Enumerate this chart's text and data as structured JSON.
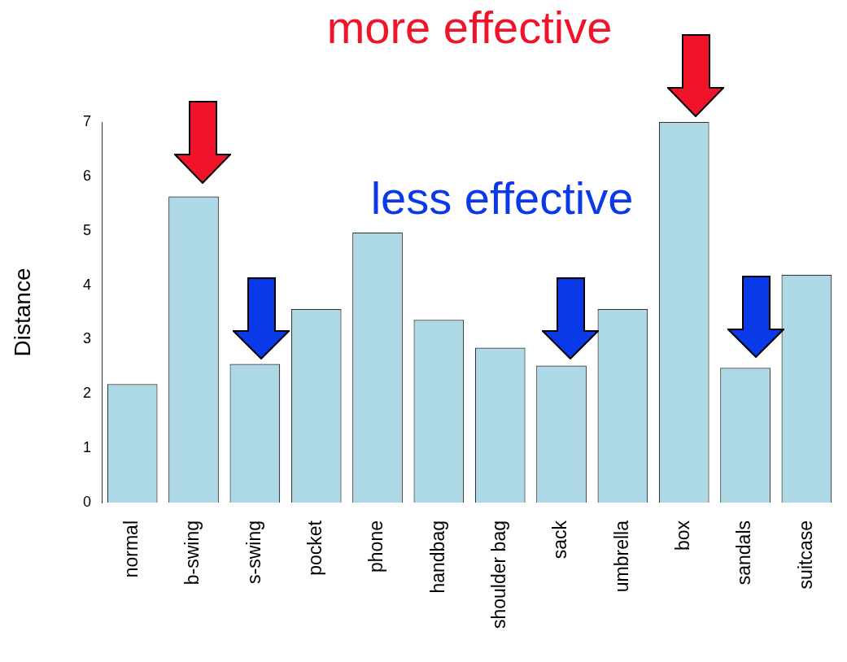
{
  "chart_data": {
    "type": "bar",
    "ylabel": "Distance",
    "categories": [
      "normal",
      "b-swing",
      "s-swing",
      "pocket",
      "phone",
      "handbag",
      "shoulder bag",
      "sack",
      "umbrella",
      "box",
      "sandals",
      "suitcase"
    ],
    "values": [
      2.18,
      5.63,
      2.55,
      3.56,
      4.97,
      3.36,
      2.85,
      2.52,
      3.56,
      7.0,
      2.48,
      4.19
    ],
    "color": "#add8e6",
    "ylim": [
      0,
      7
    ],
    "yticks": [
      0,
      1,
      2,
      3,
      4,
      5,
      6,
      7
    ],
    "grid": false,
    "legend": false,
    "annotations": [
      "more effective",
      "less effective"
    ]
  }
}
